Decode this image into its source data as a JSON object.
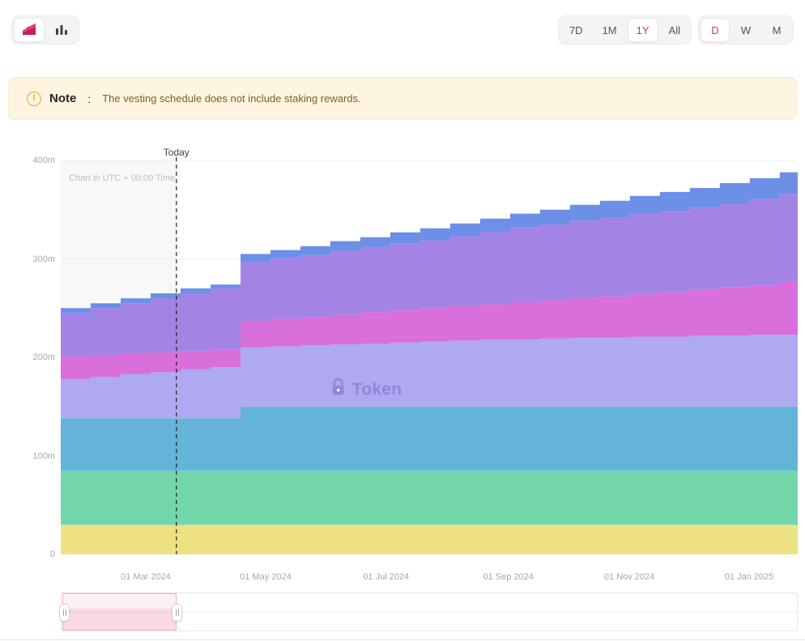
{
  "header": {
    "chart_type_toggle": {
      "active": "area",
      "items": [
        {
          "id": "area",
          "icon": "area-chart-icon"
        },
        {
          "id": "bar",
          "icon": "bar-chart-icon"
        }
      ]
    },
    "range_tabs": {
      "active": "1Y",
      "items": [
        "7D",
        "1M",
        "1Y",
        "All"
      ]
    },
    "granularity_tabs": {
      "active": "D",
      "items": [
        "D",
        "W",
        "M"
      ]
    }
  },
  "note": {
    "label": "Note",
    "colon": ":",
    "message": "The vesting schedule does not include staking rewards."
  },
  "chart": {
    "utc_note": "Chart in UTC + 00:00 Time",
    "today_label": "Today",
    "watermark_token": "Token",
    "watermark_unlocks": "Unlocks."
  },
  "chart_data": {
    "type": "area",
    "stacked": true,
    "step_interpolation": true,
    "values_unit": "millions of tokens",
    "values_are_cumulative_tops": true,
    "x_unit": "months from chart start (~mid Jan 2024)",
    "x_domain": [
      0,
      12.3
    ],
    "y_domain": [
      0,
      400
    ],
    "today_x": 1.93,
    "grid": "horizontal",
    "legend": "none",
    "x": [
      0,
      0.5,
      1,
      1.5,
      2,
      2.5,
      3,
      3.5,
      4,
      4.5,
      5,
      5.5,
      6,
      6.5,
      7,
      7.5,
      8,
      8.5,
      9,
      9.5,
      10,
      10.5,
      11,
      11.5,
      12,
      12.3
    ],
    "y_ticks": [
      {
        "value": 0,
        "label": "0"
      },
      {
        "value": 100,
        "label": "100m"
      },
      {
        "value": 200,
        "label": "200m"
      },
      {
        "value": 300,
        "label": "300m"
      },
      {
        "value": 400,
        "label": "400m"
      }
    ],
    "x_ticks": [
      {
        "pos": 1.42,
        "label": "01 Mar 2024"
      },
      {
        "pos": 3.42,
        "label": "01 May 2024"
      },
      {
        "pos": 5.43,
        "label": "01 Jul 2024"
      },
      {
        "pos": 7.47,
        "label": "01 Sep 2024"
      },
      {
        "pos": 9.49,
        "label": "01 Nov 2024"
      },
      {
        "pos": 11.49,
        "label": "01 Jan 2025"
      }
    ],
    "series": [
      {
        "id": "layer-1-yellow",
        "color": "#ecdf76",
        "values": [
          30,
          30,
          30,
          30,
          30,
          30,
          30,
          30,
          30,
          30,
          30,
          30,
          30,
          30,
          30,
          30,
          30,
          30,
          30,
          30,
          30,
          30,
          30,
          30,
          30,
          30
        ]
      },
      {
        "id": "layer-2-green",
        "color": "#67d4a4",
        "values": [
          85,
          85,
          85,
          85,
          85,
          85,
          85,
          85,
          85,
          85,
          85,
          85,
          85,
          85,
          85,
          85,
          85,
          85,
          85,
          85,
          85,
          85,
          85,
          85,
          85,
          85
        ]
      },
      {
        "id": "layer-3-teal",
        "color": "#56aed2",
        "values": [
          138,
          138,
          138,
          138,
          138,
          138,
          150,
          150,
          150,
          150,
          150,
          150,
          150,
          150,
          150,
          150,
          150,
          150,
          150,
          150,
          150,
          150,
          150,
          150,
          150,
          150
        ]
      },
      {
        "id": "layer-4-lavender",
        "color": "#a7a2ef",
        "values": [
          178,
          180,
          183,
          185,
          188,
          190,
          210,
          211,
          212,
          213,
          214,
          215,
          216,
          217,
          218,
          218,
          219,
          220,
          220,
          221,
          221,
          222,
          222,
          223,
          223,
          223
        ]
      },
      {
        "id": "layer-5-magenta",
        "color": "#d563d8",
        "values": [
          201,
          202,
          204,
          205,
          206,
          208,
          237,
          239,
          241,
          243,
          246,
          248,
          250,
          252,
          254,
          256,
          258,
          260,
          262,
          264,
          266,
          269,
          271,
          273,
          277,
          277
        ]
      },
      {
        "id": "layer-6-purple",
        "color": "#9b79e2",
        "values": [
          245,
          250,
          255,
          260,
          265,
          270,
          297,
          301,
          304,
          308,
          312,
          316,
          319,
          323,
          328,
          332,
          335,
          339,
          342,
          346,
          349,
          352,
          356,
          361,
          366,
          366
        ]
      },
      {
        "id": "layer-7-blue",
        "color": "#5f86e6",
        "values": [
          250,
          255,
          260,
          265,
          270,
          274,
          305,
          309,
          313,
          318,
          322,
          327,
          331,
          336,
          341,
          346,
          350,
          355,
          359,
          364,
          368,
          372,
          377,
          382,
          388,
          388
        ]
      }
    ]
  },
  "brush": {
    "selected_range_fraction": [
      0.0,
      0.155
    ]
  },
  "colors": {
    "accent_pink": "#df2e6c",
    "note_bg": "#fdf5df",
    "note_icon": "#dca92f",
    "watermark_purple": "#8e80d8",
    "axis_text": "#a6a6ad",
    "today_line": "#1f1f1f"
  }
}
